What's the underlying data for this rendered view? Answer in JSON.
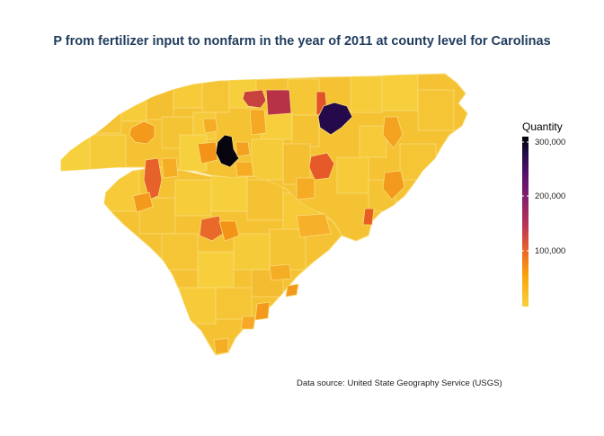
{
  "title": "P from fertilizer input to nonfarm in the year of 2011 at county level for Carolinas",
  "source": "Data source: United State Geography Service (USGS)",
  "legend": {
    "title": "Quantity",
    "ticks": [
      {
        "value": 300000,
        "label": "300,000"
      },
      {
        "value": 200000,
        "label": "200,000"
      },
      {
        "value": 100000,
        "label": "100,000"
      }
    ],
    "min": 0,
    "max": 320000,
    "colors": [
      "#f7d13d",
      "#fba40a",
      "#ec6824",
      "#bc3754",
      "#8a226a",
      "#57106e",
      "#210c4a",
      "#000004"
    ]
  }
}
